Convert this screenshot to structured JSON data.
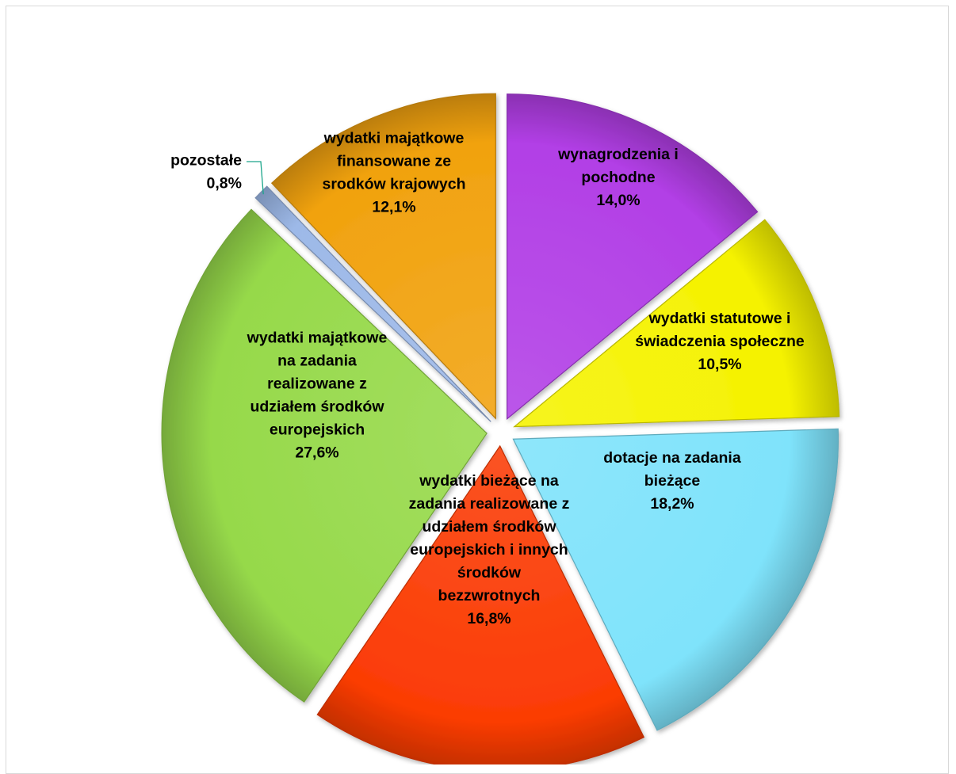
{
  "chart_data": {
    "type": "pie",
    "title": "",
    "unit": "%",
    "slices": [
      {
        "label": "wynagrodzenia i pochodne",
        "value": 14.0,
        "value_label": "14,0%",
        "color": "#b23fe6",
        "label_lines": [
          "wynagrodzenia i",
          "pochodne",
          "14,0%"
        ]
      },
      {
        "label": "wydatki statutowe i świadczenia społeczne",
        "value": 10.5,
        "value_label": "10,5%",
        "color": "#f5f200",
        "label_lines": [
          "wydatki statutowe i",
          "świadczenia społeczne",
          "10,5%"
        ]
      },
      {
        "label": "dotacje na zadania bieżące",
        "value": 18.2,
        "value_label": "18,2%",
        "color": "#7fe3fb",
        "label_lines": [
          "dotacje na zadania",
          "bieżące",
          "18,2%"
        ]
      },
      {
        "label": "wydatki bieżące na zadania realizowane z udziałem środków europejskich i innych środków bezzwrotnych",
        "value": 16.8,
        "value_label": "16,8%",
        "color": "#fb3c05",
        "label_lines": [
          "wydatki bieżące na",
          "zadania realizowane z",
          "udziałem środków",
          "europejskich i innych",
          "środków",
          "bezzwrotnych",
          "16,8%"
        ]
      },
      {
        "label": "wydatki majątkowe na zadania realizowane z udziałem środków europejskich",
        "value": 27.6,
        "value_label": "27,6%",
        "color": "#96d94a",
        "label_lines": [
          "wydatki majątkowe",
          "na zadania",
          "realizowane z",
          "udziałem środków",
          "europejskich",
          "27,6%"
        ]
      },
      {
        "label": "pozostałe",
        "value": 0.8,
        "value_label": "0,8%",
        "color": "#9db9e8",
        "label_lines": [
          "pozostałe",
          "0,8%"
        ]
      },
      {
        "label": "wydatki majątkowe finansowane ze srodków krajowych",
        "value": 12.1,
        "value_label": "12,1%",
        "color": "#f1a20e",
        "label_lines": [
          "wydatki majątkowe",
          "finansowane ze",
          "srodków krajowych",
          "12,1%"
        ]
      }
    ]
  }
}
